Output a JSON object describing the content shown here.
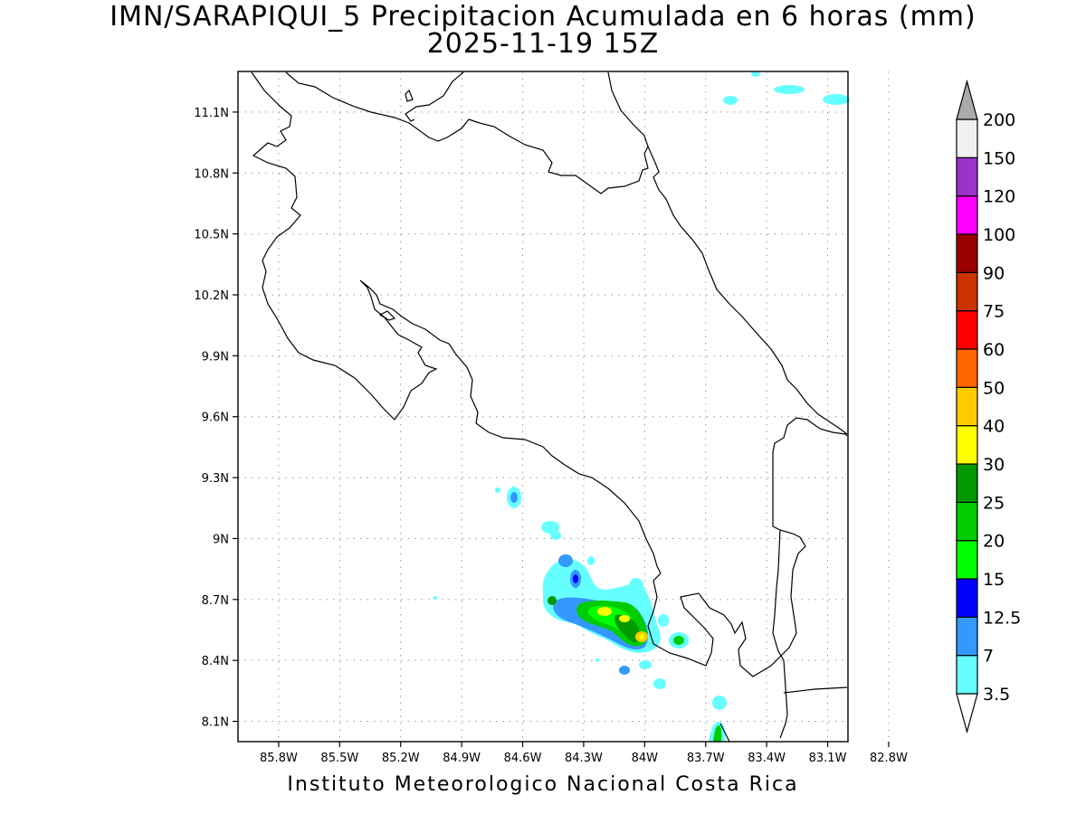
{
  "title": {
    "line1": "IMN/SARAPIQUI_5 Precipitacion Acumulada en 6 horas (mm)",
    "line2": "2025-11-19 15Z"
  },
  "footer": "Instituto Meteorologico Nacional Costa Rica",
  "map": {
    "lon_range": [
      -86.0,
      -83.0
    ],
    "lat_range": [
      8.0,
      11.3
    ],
    "lon_ticks": [
      {
        "value": -85.8,
        "label": "85.8W"
      },
      {
        "value": -85.5,
        "label": "85.5W"
      },
      {
        "value": -85.2,
        "label": "85.2W"
      },
      {
        "value": -84.9,
        "label": "84.9W"
      },
      {
        "value": -84.6,
        "label": "84.6W"
      },
      {
        "value": -84.3,
        "label": "84.3W"
      },
      {
        "value": -84.0,
        "label": "84W"
      },
      {
        "value": -83.7,
        "label": "83.7W"
      },
      {
        "value": -83.4,
        "label": "83.4W"
      },
      {
        "value": -83.1,
        "label": "83.1W"
      },
      {
        "value": -82.8,
        "label": "82.8W"
      }
    ],
    "lat_ticks": [
      {
        "value": 11.1,
        "label": "11.1N"
      },
      {
        "value": 10.8,
        "label": "10.8N"
      },
      {
        "value": 10.5,
        "label": "10.5N"
      },
      {
        "value": 10.2,
        "label": "10.2N"
      },
      {
        "value": 9.9,
        "label": "9.9N"
      },
      {
        "value": 9.6,
        "label": "9.6N"
      },
      {
        "value": 9.3,
        "label": "9.3N"
      },
      {
        "value": 9.0,
        "label": "9N"
      },
      {
        "value": 8.7,
        "label": "8.7N"
      },
      {
        "value": 8.4,
        "label": "8.4N"
      },
      {
        "value": 8.1,
        "label": "8.1N"
      }
    ],
    "grid": true
  },
  "legend": {
    "levels": [
      {
        "label": "3.5",
        "color": "#66ffff"
      },
      {
        "label": "7",
        "color": "#3399ff"
      },
      {
        "label": "12.5",
        "color": "#0000ff"
      },
      {
        "label": "15",
        "color": "#00ff00"
      },
      {
        "label": "20",
        "color": "#00cc00"
      },
      {
        "label": "25",
        "color": "#009900"
      },
      {
        "label": "30",
        "color": "#ffff00"
      },
      {
        "label": "40",
        "color": "#ffcc00"
      },
      {
        "label": "50",
        "color": "#ff6600"
      },
      {
        "label": "60",
        "color": "#ff0000"
      },
      {
        "label": "75",
        "color": "#cc3300"
      },
      {
        "label": "90",
        "color": "#990000"
      },
      {
        "label": "100",
        "color": "#ff00ff"
      },
      {
        "label": "120",
        "color": "#9933cc"
      },
      {
        "label": "150",
        "color": "#f0f0f0"
      },
      {
        "label": "200",
        "color": "#aaaaaa"
      }
    ],
    "below_color": "#ffffff"
  }
}
